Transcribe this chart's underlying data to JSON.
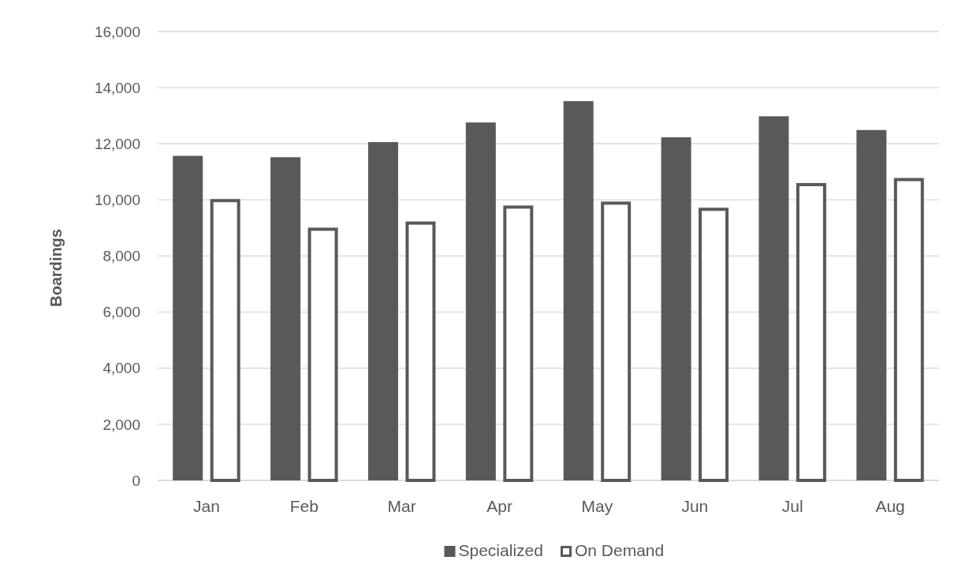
{
  "chart_data": {
    "type": "bar",
    "ylabel": "Boardings",
    "categories": [
      "Jan",
      "Feb",
      "Mar",
      "Apr",
      "May",
      "Jun",
      "Jul",
      "Aug"
    ],
    "series": [
      {
        "name": "Specialized",
        "color": "#595959",
        "values": [
          11570,
          11520,
          12060,
          12760,
          13520,
          12230,
          12980,
          12490
        ]
      },
      {
        "name": "On Demand",
        "color": "#ffffff",
        "values": [
          10030,
          9010,
          9230,
          9800,
          9940,
          9720,
          10600,
          10780
        ]
      }
    ],
    "ylim": [
      0,
      16000
    ],
    "yticks": [
      {
        "value": 0,
        "label": "0"
      },
      {
        "value": 2000,
        "label": "2,000"
      },
      {
        "value": 4000,
        "label": "4,000"
      },
      {
        "value": 6000,
        "label": "6,000"
      },
      {
        "value": 8000,
        "label": "8,000"
      },
      {
        "value": 10000,
        "label": "10,000"
      },
      {
        "value": 12000,
        "label": "12,000"
      },
      {
        "value": 14000,
        "label": "14,000"
      },
      {
        "value": 16000,
        "label": "16,000"
      }
    ],
    "grid": "y",
    "legend": "bottom"
  }
}
